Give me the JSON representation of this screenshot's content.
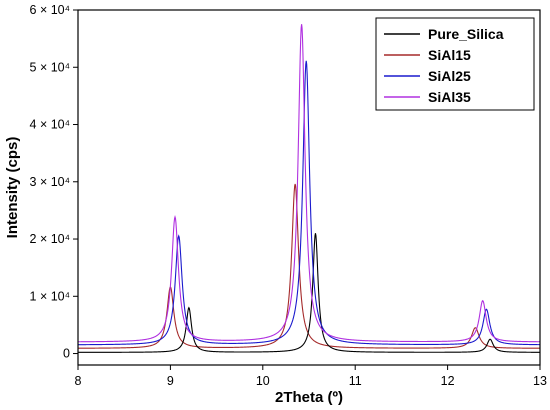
{
  "chart_data": {
    "type": "line",
    "xlabel": "2Theta (º)",
    "ylabel": "Intensity (cps)",
    "xlim": [
      8,
      13
    ],
    "ylim": [
      -2000,
      60000
    ],
    "x_ticks": [
      {
        "value": 8,
        "label": "8"
      },
      {
        "value": 9,
        "label": "9"
      },
      {
        "value": 10,
        "label": "10"
      },
      {
        "value": 11,
        "label": "11"
      },
      {
        "value": 12,
        "label": "12"
      },
      {
        "value": 13,
        "label": "13"
      }
    ],
    "y_ticks": [
      {
        "value": 0,
        "label": "0"
      },
      {
        "value": 10000,
        "label": "1 × 10⁴"
      },
      {
        "value": 20000,
        "label": "2 × 10⁴"
      },
      {
        "value": 30000,
        "label": "3 × 10⁴"
      },
      {
        "value": 40000,
        "label": "4 × 10⁴"
      },
      {
        "value": 50000,
        "label": "5 × 10⁴"
      },
      {
        "value": 60000,
        "label": "6 × 10⁴"
      }
    ],
    "legend_position": "top-right",
    "series": [
      {
        "name": "Pure_Silica",
        "color": "#000000",
        "baseline": 200,
        "peaks": [
          {
            "x": 9.2,
            "height": 7800,
            "width": 0.035
          },
          {
            "x": 10.57,
            "height": 20800,
            "width": 0.035
          },
          {
            "x": 12.46,
            "height": 2300,
            "width": 0.04
          }
        ]
      },
      {
        "name": "SiAl15",
        "color": "#a52a2a",
        "baseline": 900,
        "peaks": [
          {
            "x": 9.0,
            "height": 10700,
            "width": 0.045
          },
          {
            "x": 10.35,
            "height": 28700,
            "width": 0.045
          },
          {
            "x": 12.3,
            "height": 3600,
            "width": 0.05
          }
        ]
      },
      {
        "name": "SiAl25",
        "color": "#1a1acd",
        "baseline": 1500,
        "peaks": [
          {
            "x": 9.09,
            "height": 19000,
            "width": 0.045
          },
          {
            "x": 10.47,
            "height": 49600,
            "width": 0.045
          },
          {
            "x": 12.42,
            "height": 6200,
            "width": 0.045
          }
        ]
      },
      {
        "name": "SiAl35",
        "color": "#b030e0",
        "baseline": 2000,
        "peaks": [
          {
            "x": 9.05,
            "height": 21800,
            "width": 0.045
          },
          {
            "x": 10.42,
            "height": 55500,
            "width": 0.045
          },
          {
            "x": 12.38,
            "height": 7200,
            "width": 0.045
          }
        ]
      }
    ]
  }
}
